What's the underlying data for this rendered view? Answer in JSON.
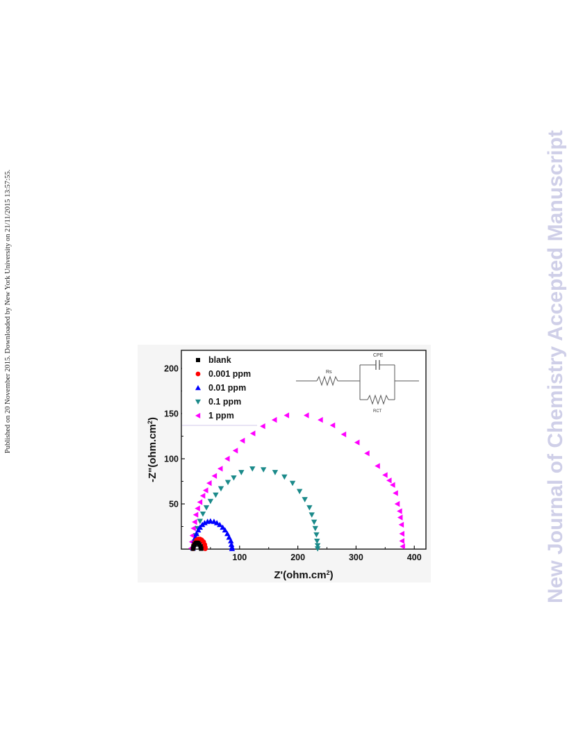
{
  "page": {
    "side_note": "Published on 20 November 2015. Downloaded by New York University on 21/11/2015 13:57:55.",
    "watermark": "New Journal of Chemistry Accepted Manuscript"
  },
  "chart_data": {
    "type": "scatter",
    "xlabel": "Z'(ohm.cm2)",
    "ylabel": "-Z\"(ohm.cm2)",
    "xlim": [
      0,
      420
    ],
    "ylim": [
      0,
      220
    ],
    "x_ticks": [
      100,
      200,
      300,
      400
    ],
    "y_ticks": [
      50,
      100,
      150,
      200
    ],
    "grid": false,
    "legend_position": "top-left",
    "inset": {
      "labels": [
        "Rs",
        "CPE",
        "RCT"
      ]
    },
    "series": [
      {
        "name": "blank",
        "marker": "square",
        "color": "#000000",
        "points": [
          [
            20,
            0.5
          ],
          [
            21,
            3
          ],
          [
            23,
            5
          ],
          [
            25,
            6.5
          ],
          [
            27,
            7
          ],
          [
            29,
            6.5
          ],
          [
            31,
            5
          ],
          [
            33,
            3
          ],
          [
            34,
            0.5
          ]
        ]
      },
      {
        "name": "0.001 ppm",
        "marker": "circle",
        "color": "#ff0000",
        "points": [
          [
            20,
            0.5
          ],
          [
            21,
            4
          ],
          [
            23,
            7
          ],
          [
            26,
            10
          ],
          [
            29,
            11
          ],
          [
            32,
            11
          ],
          [
            35,
            10
          ],
          [
            38,
            8
          ],
          [
            40,
            5
          ],
          [
            41,
            2
          ],
          [
            41,
            0.5
          ]
        ]
      },
      {
        "name": "0.01 ppm",
        "marker": "triangle-up",
        "color": "#0000ff",
        "points": [
          [
            20,
            1
          ],
          [
            21,
            5
          ],
          [
            22,
            9
          ],
          [
            24,
            13
          ],
          [
            26,
            17
          ],
          [
            29,
            21
          ],
          [
            32,
            24
          ],
          [
            36,
            27
          ],
          [
            40,
            29
          ],
          [
            45,
            30.5
          ],
          [
            50,
            31
          ],
          [
            56,
            30.5
          ],
          [
            61,
            29
          ],
          [
            66,
            27
          ],
          [
            71,
            24
          ],
          [
            75,
            21
          ],
          [
            79,
            17
          ],
          [
            82,
            13
          ],
          [
            85,
            9
          ],
          [
            86,
            5
          ],
          [
            87,
            2
          ],
          [
            87,
            0.5
          ]
        ]
      },
      {
        "name": "0.1 ppm",
        "marker": "triangle-down",
        "color": "#1b8a8a",
        "points": [
          [
            22,
            2
          ],
          [
            23,
            8
          ],
          [
            25,
            15
          ],
          [
            28,
            23
          ],
          [
            32,
            31
          ],
          [
            37,
            39
          ],
          [
            43,
            46
          ],
          [
            50,
            53
          ],
          [
            59,
            60
          ],
          [
            68,
            67
          ],
          [
            80,
            74
          ],
          [
            90,
            79
          ],
          [
            103,
            85
          ],
          [
            122,
            89
          ],
          [
            141,
            88
          ],
          [
            161,
            85
          ],
          [
            177,
            80
          ],
          [
            191,
            73
          ],
          [
            203,
            64
          ],
          [
            212,
            55
          ],
          [
            220,
            46
          ],
          [
            224,
            38
          ],
          [
            228,
            30
          ],
          [
            230,
            23
          ],
          [
            232,
            16
          ],
          [
            233,
            9
          ],
          [
            234,
            4
          ],
          [
            234,
            0.5
          ]
        ]
      },
      {
        "name": "1 ppm",
        "marker": "triangle-left",
        "color": "#ff00ff",
        "points": [
          [
            17,
            1
          ],
          [
            18,
            8
          ],
          [
            19,
            15
          ],
          [
            21,
            23
          ],
          [
            23,
            30
          ],
          [
            25,
            38
          ],
          [
            28,
            45
          ],
          [
            32,
            52
          ],
          [
            37,
            59
          ],
          [
            42,
            65
          ],
          [
            48,
            73
          ],
          [
            57,
            81
          ],
          [
            67,
            89
          ],
          [
            79,
            100
          ],
          [
            93,
            109
          ],
          [
            105,
            120
          ],
          [
            123,
            128
          ],
          [
            140,
            136
          ],
          [
            160,
            143
          ],
          [
            181,
            148
          ],
          [
            215,
            148
          ],
          [
            239,
            143
          ],
          [
            260,
            137
          ],
          [
            279,
            127
          ],
          [
            302,
            118
          ],
          [
            319,
            106
          ],
          [
            337,
            92
          ],
          [
            350,
            82
          ],
          [
            357,
            76
          ],
          [
            363,
            71
          ],
          [
            368,
            62
          ],
          [
            371,
            50
          ],
          [
            375,
            42
          ],
          [
            376,
            35
          ],
          [
            378,
            27
          ],
          [
            379,
            17
          ],
          [
            379,
            9
          ],
          [
            380,
            3
          ]
        ]
      }
    ]
  }
}
